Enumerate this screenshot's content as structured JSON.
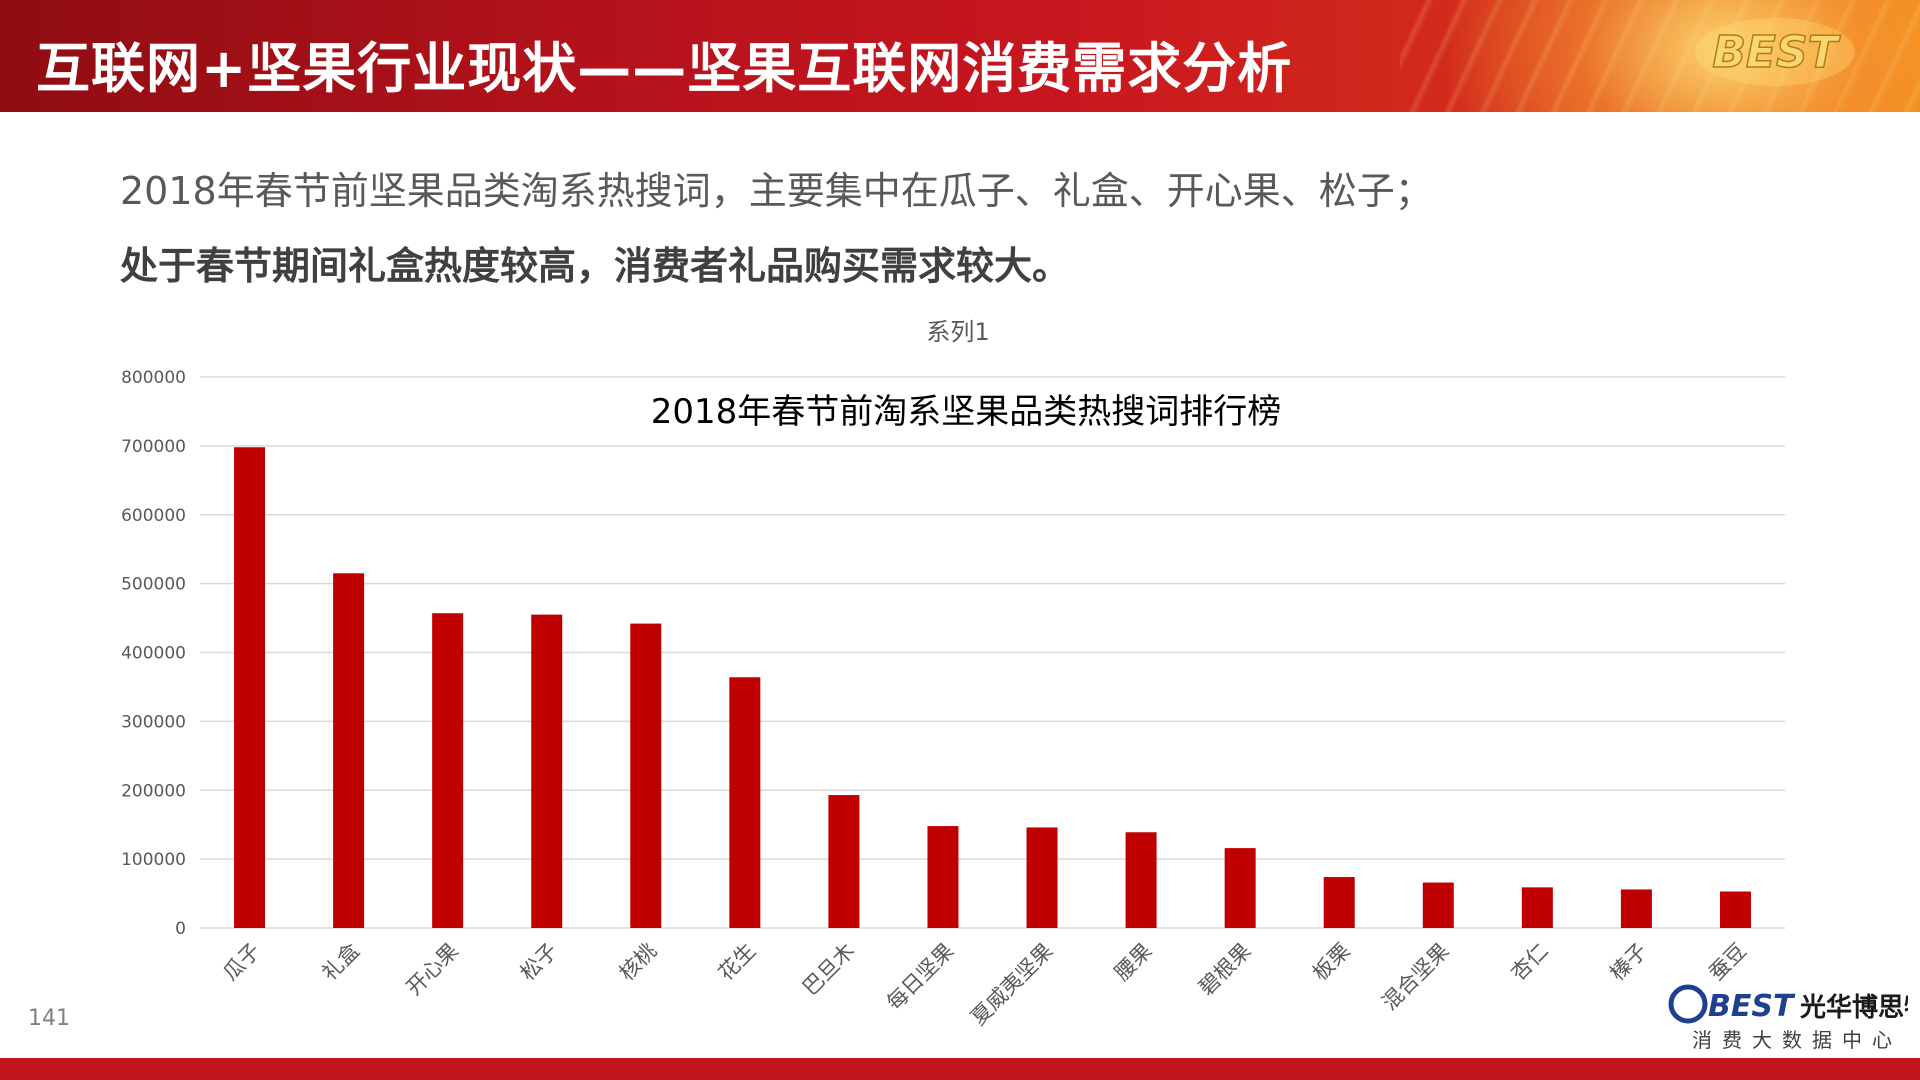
{
  "header": {
    "title": "互联网+坚果行业现状——坚果互联网消费需求分析",
    "badge_text": "BEST"
  },
  "summary": {
    "line1": "2018年春节前坚果品类淘系热搜词，主要集中在瓜子、礼盒、开心果、松子；",
    "line2": "处于春节期间礼盒热度较高，消费者礼品购买需求较大。"
  },
  "chart_data": {
    "type": "bar",
    "title": "2018年春节前淘系坚果品类热搜词排行榜",
    "legend_label": "系列1",
    "categories": [
      "瓜子",
      "礼盒",
      "开心果",
      "松子",
      "核桃",
      "花生",
      "巴旦木",
      "每日坚果",
      "夏威夷坚果",
      "腰果",
      "碧根果",
      "板栗",
      "混合坚果",
      "杏仁",
      "榛子",
      "蚕豆"
    ],
    "series": [
      {
        "name": "系列1",
        "values": [
          698000,
          515000,
          457000,
          455000,
          442000,
          364000,
          193000,
          148000,
          146000,
          139000,
          116000,
          74000,
          66000,
          59000,
          56000,
          53000
        ]
      }
    ],
    "ylim": [
      0,
      800000
    ],
    "yticks": [
      "0",
      "100000",
      "200000",
      "300000",
      "400000",
      "500000",
      "600000",
      "700000",
      "800000"
    ],
    "grid": true,
    "bar_color": "#c00000"
  },
  "page": {
    "number": "141"
  },
  "footer": {
    "logo_mark": "BEST",
    "logo_name": "光华博思特",
    "logo_sub": "消费大数据中心"
  },
  "colors": {
    "brand_red": "#c0151d",
    "bar_red": "#c00000",
    "gridline": "#d9d9d9"
  }
}
